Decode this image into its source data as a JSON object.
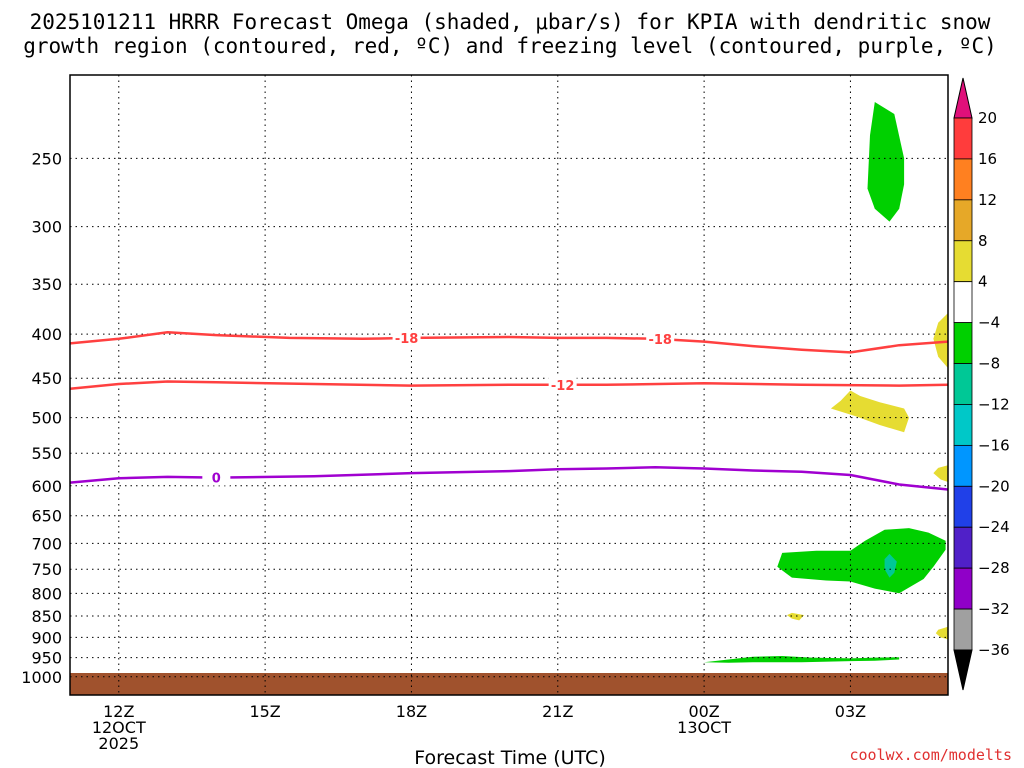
{
  "chart_data": {
    "type": "contour",
    "title_lines": [
      "2025101211 HRRR Forecast Omega (shaded, μbar/s) for KPIA with dendritic snow",
      "growth region (contoured, red, ºC) and freezing level (contoured, purple, ºC)"
    ],
    "xlabel": "Forecast Time (UTC)",
    "credit": "coolwx.com/modelts",
    "x_range_hours": [
      -1,
      17
    ],
    "x_ticks": [
      {
        "h": 0,
        "lines": [
          "12Z",
          "12OCT",
          "2025"
        ]
      },
      {
        "h": 3,
        "lines": [
          "15Z"
        ]
      },
      {
        "h": 6,
        "lines": [
          "18Z"
        ]
      },
      {
        "h": 9,
        "lines": [
          "21Z"
        ]
      },
      {
        "h": 12,
        "lines": [
          "00Z",
          "13OCT"
        ]
      },
      {
        "h": 15,
        "lines": [
          "03Z"
        ]
      }
    ],
    "y_axis": "pressure (hPa), log scale, inverted",
    "y_range": [
      200,
      1050
    ],
    "y_ticks": [
      250,
      300,
      350,
      400,
      450,
      500,
      550,
      600,
      650,
      700,
      750,
      800,
      850,
      900,
      950,
      1000
    ],
    "ground_level_hpa": 990,
    "ground_color": "#a0522d",
    "contours": [
      {
        "name": "dgz-upper",
        "level": -18,
        "color": "#ff4040",
        "points": [
          [
            -1,
            410
          ],
          [
            0,
            405
          ],
          [
            1,
            398
          ],
          [
            2,
            401
          ],
          [
            3.5,
            404
          ],
          [
            5,
            405
          ],
          [
            6,
            404
          ],
          [
            8,
            403
          ],
          [
            9,
            404
          ],
          [
            10,
            404
          ],
          [
            11,
            405
          ],
          [
            12,
            408
          ],
          [
            13,
            413
          ],
          [
            14,
            417
          ],
          [
            15,
            420
          ],
          [
            16,
            412
          ],
          [
            17,
            408
          ]
        ],
        "labels": [
          {
            "h": 5.9,
            "text": "-18"
          },
          {
            "h": 11.1,
            "text": "-18"
          }
        ]
      },
      {
        "name": "dgz-lower",
        "level": -12,
        "color": "#ff4040",
        "points": [
          [
            -1,
            463
          ],
          [
            0,
            457
          ],
          [
            1,
            454
          ],
          [
            2,
            455
          ],
          [
            4,
            457
          ],
          [
            6,
            459
          ],
          [
            8,
            458
          ],
          [
            10,
            458
          ],
          [
            12,
            456
          ],
          [
            14,
            458
          ],
          [
            16,
            459
          ],
          [
            17,
            458
          ]
        ],
        "labels": [
          {
            "h": 9.1,
            "text": "-12"
          }
        ]
      },
      {
        "name": "freezing-level",
        "level": 0,
        "color": "#a000d0",
        "points": [
          [
            -1,
            595
          ],
          [
            0,
            588
          ],
          [
            1,
            586
          ],
          [
            2,
            587
          ],
          [
            4,
            585
          ],
          [
            6,
            580
          ],
          [
            8,
            577
          ],
          [
            9,
            574
          ],
          [
            10,
            573
          ],
          [
            11,
            571
          ],
          [
            12,
            573
          ],
          [
            13,
            576
          ],
          [
            14,
            578
          ],
          [
            15,
            583
          ],
          [
            16,
            598
          ],
          [
            17,
            606
          ]
        ],
        "labels": [
          {
            "h": 2.0,
            "text": "0"
          }
        ]
      }
    ],
    "shaded_regions": [
      {
        "name": "upper-green-cell",
        "range": "-8 to -4",
        "color": "#00d000",
        "points": [
          [
            15.5,
            215
          ],
          [
            15.9,
            222
          ],
          [
            16.1,
            250
          ],
          [
            16.1,
            268
          ],
          [
            16.0,
            286
          ],
          [
            15.8,
            296
          ],
          [
            15.5,
            286
          ],
          [
            15.35,
            271
          ],
          [
            15.4,
            235
          ]
        ]
      },
      {
        "name": "right-edge-yellow-400",
        "range": "4 to 8",
        "color": "#e6dc32",
        "points": [
          [
            17,
            378
          ],
          [
            16.8,
            388
          ],
          [
            16.7,
            405
          ],
          [
            16.8,
            425
          ],
          [
            17,
            438
          ]
        ]
      },
      {
        "name": "yellow-500",
        "range": "4 to 8",
        "color": "#e6dc32",
        "points": [
          [
            15.0,
            465
          ],
          [
            15.2,
            472
          ],
          [
            15.6,
            480
          ],
          [
            16.1,
            488
          ],
          [
            16.2,
            500
          ],
          [
            16.1,
            520
          ],
          [
            15.6,
            510
          ],
          [
            15.1,
            498
          ],
          [
            14.6,
            488
          ],
          [
            14.8,
            478
          ]
        ]
      },
      {
        "name": "right-edge-yellow-560",
        "range": "4 to 8",
        "color": "#e6dc32",
        "points": [
          [
            17,
            568
          ],
          [
            16.8,
            572
          ],
          [
            16.7,
            580
          ],
          [
            16.85,
            590
          ],
          [
            17,
            594
          ]
        ]
      },
      {
        "name": "lower-green-cell",
        "range": "-8 to -4",
        "color": "#00d000",
        "points": [
          [
            13.6,
            718
          ],
          [
            14.3,
            714
          ],
          [
            15.0,
            714
          ],
          [
            15.3,
            695
          ],
          [
            15.7,
            675
          ],
          [
            16.2,
            672
          ],
          [
            16.6,
            680
          ],
          [
            16.95,
            695
          ],
          [
            16.95,
            712
          ],
          [
            16.7,
            745
          ],
          [
            16.5,
            770
          ],
          [
            16.0,
            800
          ],
          [
            15.5,
            790
          ],
          [
            15.0,
            775
          ],
          [
            14.5,
            773
          ],
          [
            13.8,
            767
          ],
          [
            13.5,
            745
          ]
        ]
      },
      {
        "name": "teal-cell",
        "range": "-12 to -8",
        "color": "#00c896",
        "points": [
          [
            15.8,
            720
          ],
          [
            15.95,
            735
          ],
          [
            15.9,
            757
          ],
          [
            15.8,
            767
          ],
          [
            15.7,
            750
          ],
          [
            15.7,
            730
          ]
        ]
      },
      {
        "name": "small-yellow-850",
        "range": "4 to 8",
        "color": "#e6dc32",
        "points": [
          [
            13.8,
            843
          ],
          [
            14.05,
            848
          ],
          [
            13.95,
            860
          ],
          [
            13.8,
            856
          ],
          [
            13.7,
            848
          ]
        ]
      },
      {
        "name": "right-edge-yellow-890",
        "range": "4 to 8",
        "color": "#e6dc32",
        "points": [
          [
            17,
            875
          ],
          [
            16.8,
            882
          ],
          [
            16.75,
            890
          ],
          [
            16.85,
            900
          ],
          [
            17,
            905
          ]
        ]
      },
      {
        "name": "near-surface-green",
        "range": "-8 to -4",
        "color": "#00d000",
        "points": [
          [
            12,
            962
          ],
          [
            12.5,
            955
          ],
          [
            13.0,
            948
          ],
          [
            13.6,
            946
          ],
          [
            14.2,
            950
          ],
          [
            15.0,
            952
          ],
          [
            15.5,
            950
          ],
          [
            16.0,
            949
          ],
          [
            16.0,
            955
          ],
          [
            15.5,
            958
          ],
          [
            15.0,
            959
          ],
          [
            14.0,
            962
          ],
          [
            13.0,
            962
          ],
          [
            12.5,
            963
          ]
        ]
      }
    ],
    "colorbar": {
      "tick_labels": [
        "20",
        "16",
        "12",
        "8",
        "4",
        "−4",
        "−8",
        "−12",
        "−16",
        "−20",
        "−24",
        "−28",
        "−32",
        "−36"
      ],
      "top_arrow_color": "#e0107a",
      "bottom_arrow_color": "#000000",
      "segment_colors": [
        "#ff3c3c",
        "#ff8020",
        "#e6a828",
        "#e6dc32",
        "#ffffff",
        "#00d000",
        "#00c896",
        "#00c8c8",
        "#0096ff",
        "#2040e8",
        "#5020c8",
        "#9000c8",
        "#a0a0a0"
      ]
    }
  }
}
